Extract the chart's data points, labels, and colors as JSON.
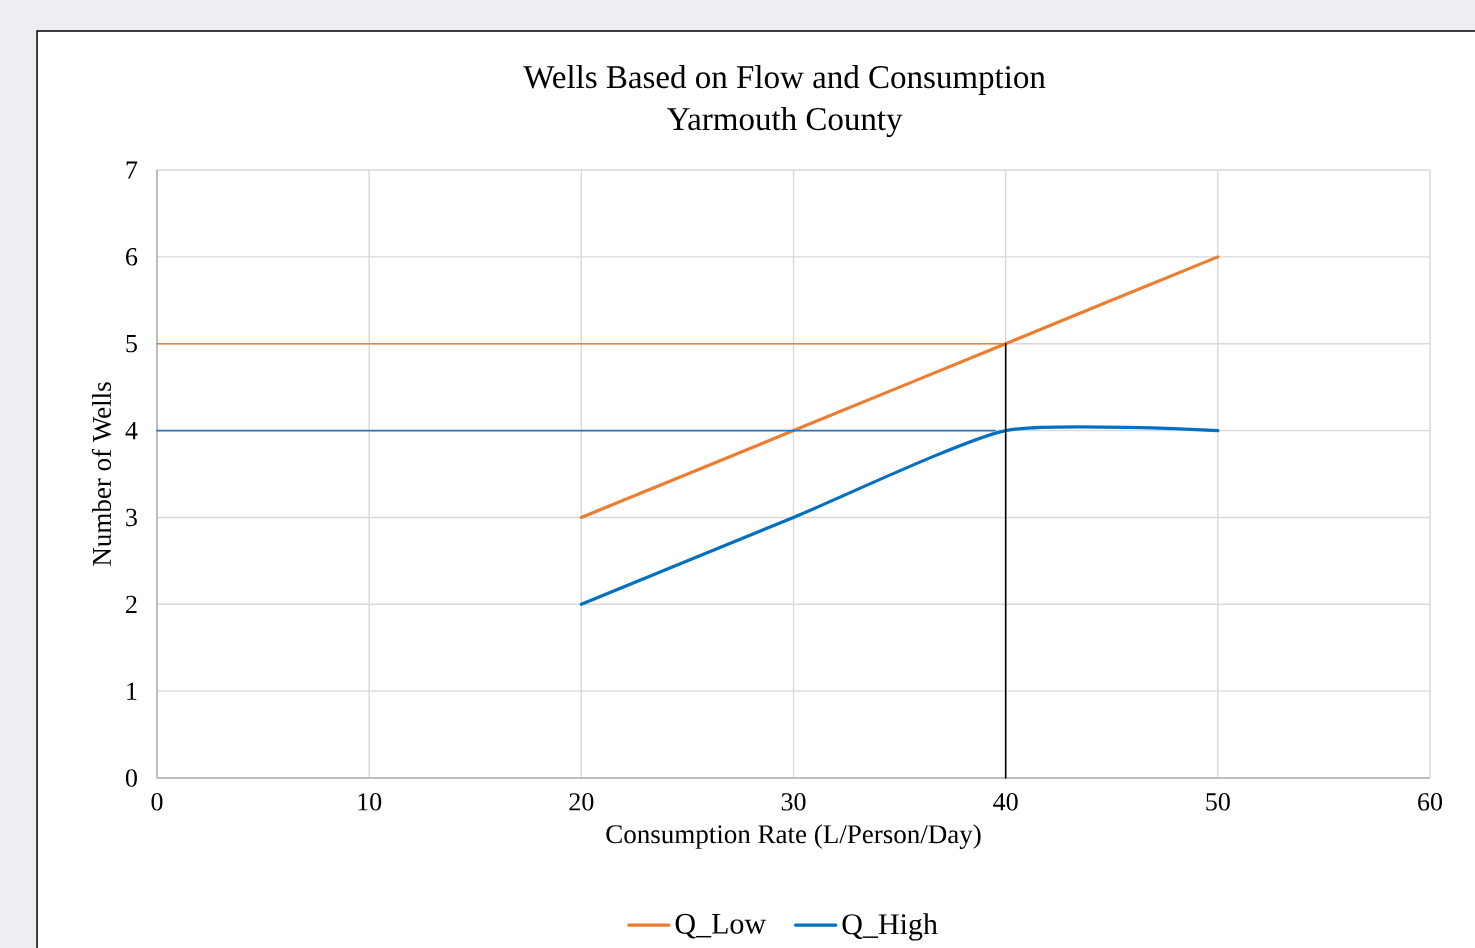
{
  "chart_data": {
    "type": "line",
    "title": "Wells Based on Flow and Consumption",
    "subtitle": "Yarmouth County",
    "xlabel": "Consumption Rate (L/Person/Day)",
    "ylabel": "Number of Wells",
    "xlim": [
      0,
      60
    ],
    "xticks": [
      0,
      10,
      20,
      30,
      40,
      50,
      60
    ],
    "ylim": [
      0,
      7
    ],
    "yticks": [
      0,
      1,
      2,
      3,
      4,
      5,
      6,
      7
    ],
    "grid": true,
    "legend": "bottom",
    "series": [
      {
        "name": "Q_Low",
        "color": "#ed7d31",
        "x": [
          20,
          30,
          40,
          50
        ],
        "values": [
          3,
          4,
          5,
          6
        ]
      },
      {
        "name": "Q_High",
        "color": "#0070c0",
        "x": [
          20,
          30,
          40,
          50
        ],
        "values": [
          2,
          3,
          4,
          4
        ]
      },
      {
        "color": "#ed7d31",
        "x": [
          0,
          40
        ],
        "values": [
          5,
          5
        ]
      },
      {
        "color": "#2e75b6",
        "x": [
          0,
          39.5
        ],
        "values": [
          4,
          4
        ]
      },
      {
        "color": "#000000",
        "x": [
          40,
          40
        ],
        "values": [
          0,
          5
        ]
      }
    ]
  }
}
